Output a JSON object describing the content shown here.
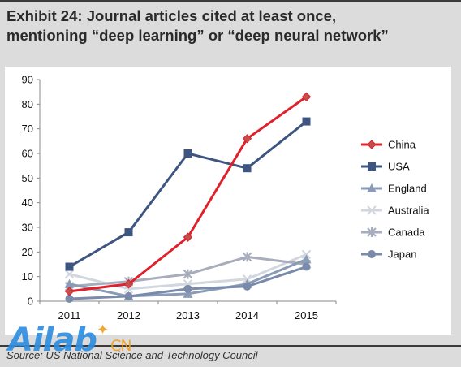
{
  "title": {
    "line1": "Exhibit 24: Journal articles cited at least once,",
    "line2": "mentioning “deep learning” or “deep neural network”"
  },
  "source": "Source: US National Science and Technology Council",
  "watermark": {
    "text": "Ailab",
    "suffix": "CN"
  },
  "chart_data": {
    "type": "line",
    "title": "Exhibit 24: Journal articles cited at least once, mentioning “deep learning” or “deep neural network”",
    "x": [
      "2011",
      "2012",
      "2013",
      "2014",
      "2015"
    ],
    "ylim": [
      0,
      90
    ],
    "yticks": [
      0,
      10,
      20,
      30,
      40,
      50,
      60,
      70,
      80,
      90
    ],
    "grid": false,
    "legend": "right",
    "series": [
      {
        "name": "China",
        "values": [
          4,
          7,
          26,
          66,
          83
        ],
        "color": "#e0202a",
        "marker": "diamond",
        "line_color": "#e0202a"
      },
      {
        "name": "USA",
        "values": [
          14,
          28,
          60,
          54,
          73
        ],
        "color": "#3d5580",
        "marker": "square",
        "line_color": "#3d5580"
      },
      {
        "name": "England",
        "values": [
          7,
          2,
          3,
          7,
          17
        ],
        "color": "#8a9bb5",
        "marker": "triangle",
        "line_color": "#8a9bb5"
      },
      {
        "name": "Australia",
        "values": [
          11,
          5,
          7,
          9,
          19
        ],
        "color": "#d2d6de",
        "marker": "x",
        "line_color": "#d2d6de"
      },
      {
        "name": "Canada",
        "values": [
          6,
          8,
          11,
          18,
          15
        ],
        "color": "#a8adbd",
        "marker": "star",
        "line_color": "#a8adbd"
      },
      {
        "name": "Japan",
        "values": [
          1,
          2,
          5,
          6,
          14
        ],
        "color": "#7a8aaa",
        "marker": "circle",
        "line_color": "#7a8aaa"
      }
    ]
  }
}
